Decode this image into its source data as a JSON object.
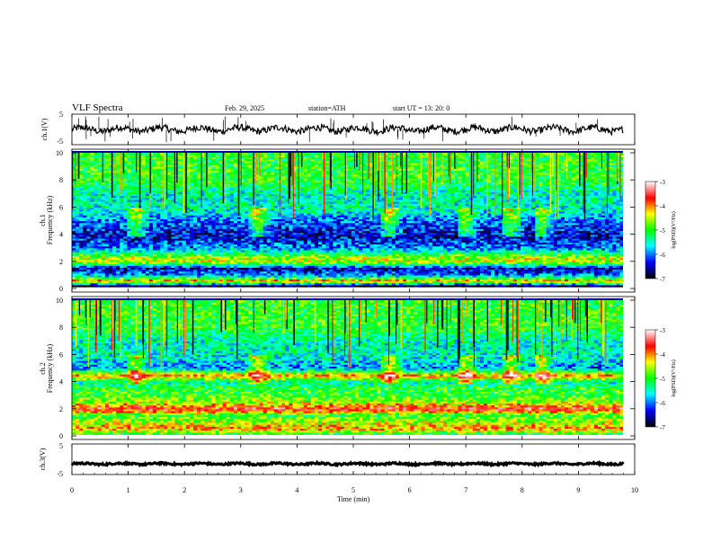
{
  "header": {
    "title": "VLF  Spectra",
    "date": "Feb. 29, 2025",
    "station": "station=ATH",
    "start": "start  UT  =   13: 20: 0"
  },
  "colorbar": {
    "label": "log(PSD)(V²/Hz)",
    "ticks": [
      "-3",
      "-4",
      "-5",
      "-6",
      "-7"
    ],
    "scale": [
      "#ffffff",
      "#ff0000",
      "#ffff00",
      "#00ff00",
      "#00ffff",
      "#0000ff",
      "#000000"
    ]
  },
  "chart_data": [
    {
      "type": "line",
      "name": "ch.1 waveform",
      "ylabel": "ch.1(V)",
      "ylim": [
        -5,
        5
      ],
      "yticks": [
        "5",
        "-5"
      ],
      "xlim": [
        0,
        10
      ],
      "values_note": "",
      "baseline": 0,
      "color": "#000000"
    },
    {
      "type": "heatmap",
      "ylabel": "ch.1\nFrequency (kHz)",
      "ylabel_line1": "ch.1",
      "ylabel_line2": "Frequency  (kHz)",
      "ylim": [
        0,
        10
      ],
      "yticks": [
        "0",
        "2",
        "4",
        "6",
        "8",
        "10"
      ],
      "xlim": [
        0,
        10
      ],
      "xunit": "min",
      "bands_khz": [
        {
          "freq": 0.2,
          "level": -7
        },
        {
          "freq": 0.6,
          "level": -4
        },
        {
          "freq": 1.0,
          "level": -6
        },
        {
          "freq": 1.5,
          "level": -6.5
        },
        {
          "freq": 2.0,
          "level": -4.5
        },
        {
          "freq": 2.3,
          "level": -4.5
        },
        {
          "freq": 3.0,
          "level": -6
        },
        {
          "freq": 4.0,
          "level": -6.5
        },
        {
          "freq": 5.0,
          "level": -6
        },
        {
          "freq": 6.0,
          "level": -5.5
        },
        {
          "freq": 7.0,
          "level": -5.5
        },
        {
          "freq": 8.0,
          "level": -5
        },
        {
          "freq": 9.0,
          "level": -5
        },
        {
          "freq": 10.0,
          "level": -5
        }
      ],
      "bursts_min": [
        1.15,
        3.3,
        5.65,
        7.0,
        7.8,
        8.35
      ]
    },
    {
      "type": "heatmap",
      "ylabel": "ch.2\nFrequency (kHz)",
      "ylabel_line1": "ch.2",
      "ylabel_line2": "Frequency  (kHz)",
      "ylim": [
        0,
        10
      ],
      "yticks": [
        "0",
        "2",
        "4",
        "6",
        "8",
        "10"
      ],
      "xlim": [
        0,
        10
      ],
      "xunit": "min",
      "bands_khz": [
        {
          "freq": 0.2,
          "level": -5
        },
        {
          "freq": 0.6,
          "level": -4
        },
        {
          "freq": 1.0,
          "level": -4.5
        },
        {
          "freq": 1.5,
          "level": -5
        },
        {
          "freq": 2.0,
          "level": -3.5
        },
        {
          "freq": 2.5,
          "level": -4.5
        },
        {
          "freq": 3.0,
          "level": -5
        },
        {
          "freq": 3.5,
          "level": -5
        },
        {
          "freq": 4.0,
          "level": -5.5
        },
        {
          "freq": 4.5,
          "level": -4
        },
        {
          "freq": 5.0,
          "level": -6
        },
        {
          "freq": 6.0,
          "level": -5.5
        },
        {
          "freq": 7.0,
          "level": -5.5
        },
        {
          "freq": 8.0,
          "level": -5
        },
        {
          "freq": 9.0,
          "level": -5
        },
        {
          "freq": 10.0,
          "level": -5
        }
      ],
      "bursts_min": [
        1.15,
        3.3,
        5.65,
        7.0,
        7.8,
        8.35
      ]
    },
    {
      "type": "line",
      "name": "ch.3 waveform",
      "ylabel": "ch.3(V)",
      "ylim": [
        -5,
        5
      ],
      "yticks": [
        "5",
        "-5"
      ],
      "xlim": [
        0,
        10
      ],
      "baseline": -1.5,
      "color": "#000000"
    }
  ],
  "xaxis": {
    "label": "Time  (min)",
    "ticks": [
      "0",
      "1",
      "2",
      "3",
      "4",
      "5",
      "6",
      "7",
      "8",
      "9",
      "10"
    ],
    "range": [
      0,
      10
    ]
  }
}
